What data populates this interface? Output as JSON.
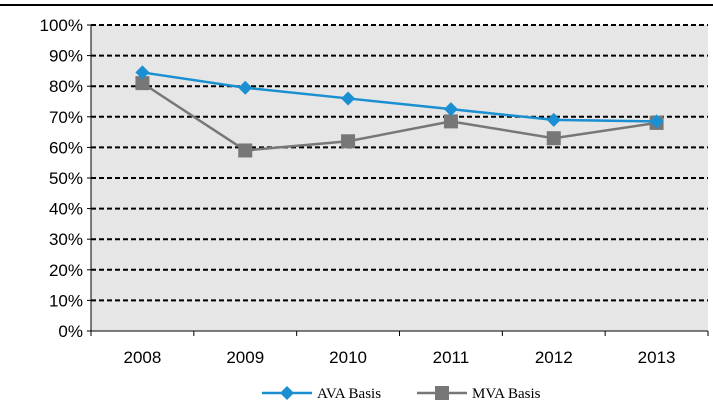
{
  "chart_data": {
    "type": "line",
    "categories": [
      "2008",
      "2009",
      "2010",
      "2011",
      "2012",
      "2013"
    ],
    "series": [
      {
        "name": "AVA Basis",
        "values": [
          84.5,
          79.5,
          76.0,
          72.5,
          69.0,
          68.5
        ],
        "color": "#1A8FD1",
        "marker": "diamond"
      },
      {
        "name": "MVA Basis",
        "values": [
          81.0,
          59.0,
          62.0,
          68.5,
          63.0,
          68.0
        ],
        "color": "#777777",
        "marker": "square"
      }
    ],
    "ylim": [
      0,
      100
    ],
    "yticks": [
      "0%",
      "10%",
      "20%",
      "30%",
      "40%",
      "50%",
      "60%",
      "70%",
      "80%",
      "90%",
      "100%"
    ],
    "y_unit": "%",
    "grid": "horizontal dashed",
    "plot_background": "#E6E6E6",
    "legend_position": "bottom"
  }
}
